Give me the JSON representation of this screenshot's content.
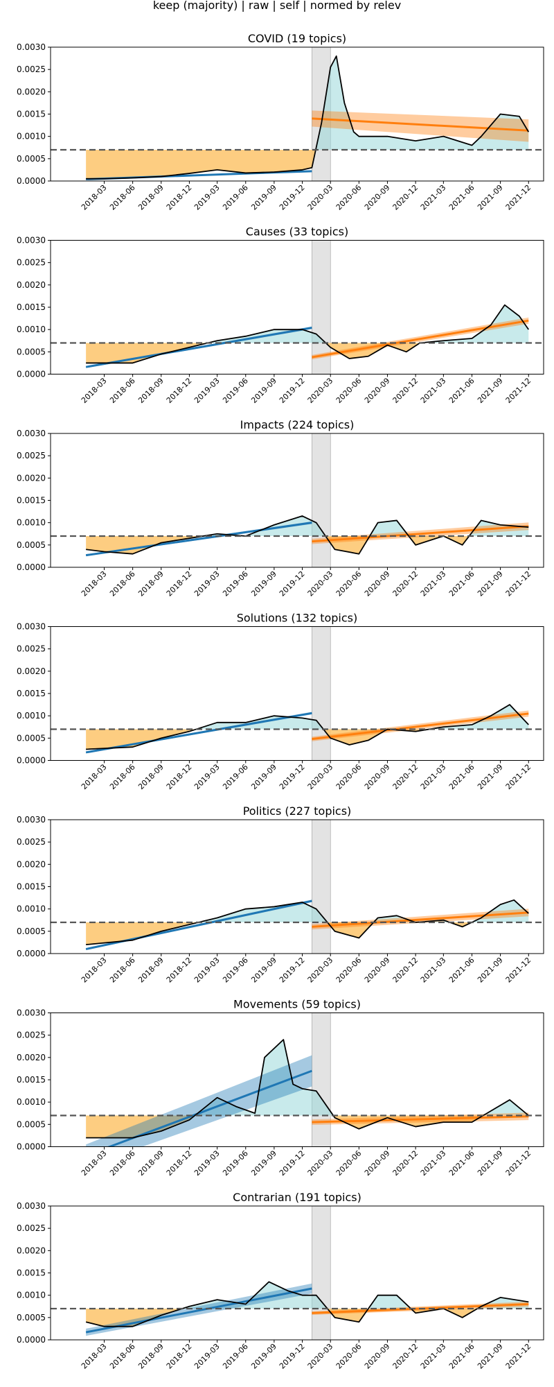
{
  "title": "keep (majority) | raw | self | normed by relev",
  "colors": {
    "below_fill": "#fdc46b",
    "above_fill": "#9ad9da",
    "series_line": "#000000",
    "pre_fit": "#1f77b4",
    "post_fit": "#ff7f0e",
    "threshold_line": "#555555",
    "shade_band": "#d9d9d9"
  },
  "chart_data": [
    {
      "type": "line",
      "title": "COVID (19 topics)",
      "x_range": [
        "2018-01-01",
        "2021-12-01"
      ],
      "ylim": [
        0,
        0.003
      ],
      "yticks": [
        "0.0000",
        "0.0005",
        "0.0010",
        "0.0015",
        "0.0020",
        "0.0025",
        "0.0030"
      ],
      "xticks": [
        "2018-03",
        "2018-06",
        "2018-09",
        "2018-12",
        "2019-03",
        "2019-06",
        "2019-09",
        "2019-12",
        "2020-03",
        "2020-06",
        "2020-09",
        "2020-12",
        "2021-03",
        "2021-06",
        "2021-09",
        "2021-12"
      ],
      "threshold": 0.0007,
      "shade": [
        "2020-01-01",
        "2020-03-01"
      ],
      "series": [
        {
          "x": [
            "2018-01-01",
            "2018-03-01",
            "2018-06-01",
            "2018-09-01",
            "2018-12-01",
            "2019-03-01",
            "2019-06-01",
            "2019-09-01",
            "2019-12-01",
            "2020-01-01",
            "2020-02-01",
            "2020-03-01",
            "2020-03-20",
            "2020-04-15",
            "2020-05-15",
            "2020-06-01",
            "2020-09-01",
            "2020-12-01",
            "2021-03-01",
            "2021-06-01",
            "2021-07-01",
            "2021-09-01",
            "2021-11-01",
            "2021-12-01"
          ],
          "y": [
            5e-05,
            5e-05,
            7e-05,
            0.0001,
            0.00017,
            0.00025,
            0.00018,
            0.0002,
            0.00025,
            0.0003,
            0.0013,
            0.00255,
            0.0028,
            0.00175,
            0.0011,
            0.001,
            0.001,
            0.0009,
            0.001,
            0.0008,
            0.001,
            0.0015,
            0.00145,
            0.0011
          ]
        }
      ],
      "pre_fit": {
        "x": [
          "2018-01-01",
          "2020-01-01"
        ],
        "y": [
          4e-05,
          0.00022
        ],
        "ci": 1e-05
      },
      "post_fit": {
        "x": [
          "2020-01-01",
          "2021-12-01"
        ],
        "y": [
          0.0014,
          0.00113
        ],
        "ci": 0.00018
      }
    },
    {
      "type": "line",
      "title": "Causes (33 topics)",
      "x_range": [
        "2018-01-01",
        "2021-12-01"
      ],
      "ylim": [
        0,
        0.003
      ],
      "yticks": [
        "0.0000",
        "0.0005",
        "0.0010",
        "0.0015",
        "0.0020",
        "0.0025",
        "0.0030"
      ],
      "xticks": [
        "2018-03",
        "2018-06",
        "2018-09",
        "2018-12",
        "2019-03",
        "2019-06",
        "2019-09",
        "2019-12",
        "2020-03",
        "2020-06",
        "2020-09",
        "2020-12",
        "2021-03",
        "2021-06",
        "2021-09",
        "2021-12"
      ],
      "threshold": 0.0007,
      "shade": [
        "2020-01-01",
        "2020-03-01"
      ],
      "series": [
        {
          "x": [
            "2018-01-01",
            "2018-06-01",
            "2018-09-01",
            "2018-12-01",
            "2019-03-01",
            "2019-06-01",
            "2019-09-01",
            "2019-12-01",
            "2020-01-15",
            "2020-03-01",
            "2020-05-01",
            "2020-07-01",
            "2020-09-01",
            "2020-11-01",
            "2020-12-15",
            "2021-03-01",
            "2021-06-01",
            "2021-08-01",
            "2021-09-15",
            "2021-11-01",
            "2021-12-01"
          ],
          "y": [
            0.00025,
            0.00025,
            0.00045,
            0.0006,
            0.00075,
            0.00085,
            0.001,
            0.001,
            0.0009,
            0.0006,
            0.00035,
            0.0004,
            0.00065,
            0.0005,
            0.0007,
            0.00075,
            0.0008,
            0.0011,
            0.00155,
            0.0013,
            0.001
          ]
        }
      ],
      "pre_fit": {
        "x": [
          "2018-01-01",
          "2020-01-01"
        ],
        "y": [
          0.00016,
          0.00104
        ],
        "ci": 2e-05
      },
      "post_fit": {
        "x": [
          "2020-01-01",
          "2021-12-01"
        ],
        "y": [
          0.00038,
          0.0012
        ],
        "ci": 5e-05
      }
    },
    {
      "type": "line",
      "title": "Impacts (224 topics)",
      "x_range": [
        "2018-01-01",
        "2021-12-01"
      ],
      "ylim": [
        0,
        0.003
      ],
      "yticks": [
        "0.0000",
        "0.0005",
        "0.0010",
        "0.0015",
        "0.0020",
        "0.0025",
        "0.0030"
      ],
      "xticks": [
        "2018-03",
        "2018-06",
        "2018-09",
        "2018-12",
        "2019-03",
        "2019-06",
        "2019-09",
        "2019-12",
        "2020-03",
        "2020-06",
        "2020-09",
        "2020-12",
        "2021-03",
        "2021-06",
        "2021-09",
        "2021-12"
      ],
      "threshold": 0.0007,
      "shade": [
        "2020-01-01",
        "2020-03-01"
      ],
      "series": [
        {
          "x": [
            "2018-01-01",
            "2018-03-01",
            "2018-06-01",
            "2018-09-01",
            "2018-12-01",
            "2019-03-01",
            "2019-06-01",
            "2019-09-01",
            "2019-12-01",
            "2020-01-15",
            "2020-03-15",
            "2020-06-01",
            "2020-08-01",
            "2020-10-01",
            "2020-12-01",
            "2021-03-01",
            "2021-05-01",
            "2021-07-01",
            "2021-09-01",
            "2021-12-01"
          ],
          "y": [
            0.0004,
            0.00035,
            0.0003,
            0.00055,
            0.00065,
            0.00075,
            0.0007,
            0.00095,
            0.00115,
            0.001,
            0.0004,
            0.0003,
            0.001,
            0.00105,
            0.0005,
            0.0007,
            0.0005,
            0.00105,
            0.00095,
            0.0009
          ]
        }
      ],
      "pre_fit": {
        "x": [
          "2018-01-01",
          "2020-01-01"
        ],
        "y": [
          0.00027,
          0.001
        ],
        "ci": 2e-05
      },
      "post_fit": {
        "x": [
          "2020-01-01",
          "2021-12-01"
        ],
        "y": [
          0.00058,
          0.00092
        ],
        "ci": 6e-05
      }
    },
    {
      "type": "line",
      "title": "Solutions (132 topics)",
      "x_range": [
        "2018-01-01",
        "2021-12-01"
      ],
      "ylim": [
        0,
        0.003
      ],
      "yticks": [
        "0.0000",
        "0.0005",
        "0.0010",
        "0.0015",
        "0.0020",
        "0.0025",
        "0.0030"
      ],
      "xticks": [
        "2018-03",
        "2018-06",
        "2018-09",
        "2018-12",
        "2019-03",
        "2019-06",
        "2019-09",
        "2019-12",
        "2020-03",
        "2020-06",
        "2020-09",
        "2020-12",
        "2021-03",
        "2021-06",
        "2021-09",
        "2021-12"
      ],
      "threshold": 0.0007,
      "shade": [
        "2020-01-01",
        "2020-03-01"
      ],
      "series": [
        {
          "x": [
            "2018-01-01",
            "2018-06-01",
            "2018-09-01",
            "2018-12-01",
            "2019-03-01",
            "2019-06-01",
            "2019-09-01",
            "2019-12-01",
            "2020-01-15",
            "2020-03-01",
            "2020-05-01",
            "2020-07-01",
            "2020-09-01",
            "2020-12-01",
            "2021-03-01",
            "2021-06-01",
            "2021-08-01",
            "2021-10-01",
            "2021-12-01"
          ],
          "y": [
            0.00025,
            0.0003,
            0.0005,
            0.00065,
            0.00085,
            0.00085,
            0.001,
            0.00095,
            0.0009,
            0.0005,
            0.00035,
            0.00045,
            0.0007,
            0.00065,
            0.00075,
            0.0008,
            0.001,
            0.00125,
            0.0008
          ]
        }
      ],
      "pre_fit": {
        "x": [
          "2018-01-01",
          "2020-01-01"
        ],
        "y": [
          0.00018,
          0.00106
        ],
        "ci": 2e-05
      },
      "post_fit": {
        "x": [
          "2020-01-01",
          "2021-12-01"
        ],
        "y": [
          0.00048,
          0.00105
        ],
        "ci": 5e-05
      }
    },
    {
      "type": "line",
      "title": "Politics (227 topics)",
      "x_range": [
        "2018-01-01",
        "2021-12-01"
      ],
      "ylim": [
        0,
        0.003
      ],
      "yticks": [
        "0.0000",
        "0.0005",
        "0.0010",
        "0.0015",
        "0.0020",
        "0.0025",
        "0.0030"
      ],
      "xticks": [
        "2018-03",
        "2018-06",
        "2018-09",
        "2018-12",
        "2019-03",
        "2019-06",
        "2019-09",
        "2019-12",
        "2020-03",
        "2020-06",
        "2020-09",
        "2020-12",
        "2021-03",
        "2021-06",
        "2021-09",
        "2021-12"
      ],
      "threshold": 0.0007,
      "shade": [
        "2020-01-01",
        "2020-03-01"
      ],
      "series": [
        {
          "x": [
            "2018-01-01",
            "2018-06-01",
            "2018-09-01",
            "2018-12-01",
            "2019-03-01",
            "2019-06-01",
            "2019-09-01",
            "2019-12-01",
            "2020-01-15",
            "2020-03-15",
            "2020-06-01",
            "2020-08-01",
            "2020-10-01",
            "2020-12-01",
            "2021-03-01",
            "2021-05-01",
            "2021-07-01",
            "2021-09-01",
            "2021-10-15",
            "2021-12-01"
          ],
          "y": [
            0.0002,
            0.0003,
            0.0005,
            0.00065,
            0.0008,
            0.001,
            0.00105,
            0.00115,
            0.001,
            0.0005,
            0.00035,
            0.0008,
            0.00085,
            0.0007,
            0.00075,
            0.0006,
            0.0008,
            0.0011,
            0.0012,
            0.0009
          ]
        }
      ],
      "pre_fit": {
        "x": [
          "2018-01-01",
          "2020-01-01"
        ],
        "y": [
          0.0001,
          0.00118
        ],
        "ci": 2e-05
      },
      "post_fit": {
        "x": [
          "2020-01-01",
          "2021-12-01"
        ],
        "y": [
          0.0006,
          0.00092
        ],
        "ci": 6e-05
      }
    },
    {
      "type": "line",
      "title": "Movements (59 topics)",
      "x_range": [
        "2018-01-01",
        "2021-12-01"
      ],
      "ylim": [
        0,
        0.003
      ],
      "yticks": [
        "0.0000",
        "0.0005",
        "0.0010",
        "0.0015",
        "0.0020",
        "0.0025",
        "0.0030"
      ],
      "xticks": [
        "2018-03",
        "2018-06",
        "2018-09",
        "2018-12",
        "2019-03",
        "2019-06",
        "2019-09",
        "2019-12",
        "2020-03",
        "2020-06",
        "2020-09",
        "2020-12",
        "2021-03",
        "2021-06",
        "2021-09",
        "2021-12"
      ],
      "threshold": 0.0007,
      "shade": [
        "2020-01-01",
        "2020-03-01"
      ],
      "series": [
        {
          "x": [
            "2018-01-01",
            "2018-06-01",
            "2018-09-01",
            "2018-12-01",
            "2019-03-01",
            "2019-05-01",
            "2019-07-01",
            "2019-08-01",
            "2019-10-01",
            "2019-11-01",
            "2019-12-01",
            "2020-01-15",
            "2020-03-15",
            "2020-06-01",
            "2020-09-01",
            "2020-12-01",
            "2021-03-01",
            "2021-06-01",
            "2021-08-01",
            "2021-10-01",
            "2021-12-01"
          ],
          "y": [
            0.0002,
            0.0002,
            0.00035,
            0.0006,
            0.0011,
            0.0009,
            0.00075,
            0.002,
            0.0024,
            0.0014,
            0.0013,
            0.00125,
            0.00065,
            0.0004,
            0.00065,
            0.00045,
            0.00055,
            0.00055,
            0.0008,
            0.00105,
            0.0007
          ]
        }
      ],
      "pre_fit": {
        "x": [
          "2018-01-01",
          "2020-01-01"
        ],
        "y": [
          -0.0002,
          0.0017
        ],
        "ci": 0.00025
      },
      "post_fit": {
        "x": [
          "2020-01-01",
          "2021-12-01"
        ],
        "y": [
          0.00055,
          0.00068
        ],
        "ci": 6e-05
      }
    },
    {
      "type": "line",
      "title": "Contrarian (191 topics)",
      "x_range": [
        "2018-01-01",
        "2021-12-01"
      ],
      "ylim": [
        0,
        0.003
      ],
      "yticks": [
        "0.0000",
        "0.0005",
        "0.0010",
        "0.0015",
        "0.0020",
        "0.0025",
        "0.0030"
      ],
      "xticks": [
        "2018-03",
        "2018-06",
        "2018-09",
        "2018-12",
        "2019-03",
        "2019-06",
        "2019-09",
        "2019-12",
        "2020-03",
        "2020-06",
        "2020-09",
        "2020-12",
        "2021-03",
        "2021-06",
        "2021-09",
        "2021-12"
      ],
      "threshold": 0.0007,
      "shade": [
        "2020-01-01",
        "2020-03-01"
      ],
      "series": [
        {
          "x": [
            "2018-01-01",
            "2018-03-01",
            "2018-06-01",
            "2018-09-01",
            "2018-12-01",
            "2019-03-01",
            "2019-06-01",
            "2019-08-15",
            "2019-10-15",
            "2019-12-01",
            "2020-01-15",
            "2020-03-15",
            "2020-06-01",
            "2020-08-01",
            "2020-10-01",
            "2020-12-01",
            "2021-03-01",
            "2021-05-01",
            "2021-07-01",
            "2021-09-01",
            "2021-12-01"
          ],
          "y": [
            0.0004,
            0.0003,
            0.0003,
            0.00055,
            0.00075,
            0.0009,
            0.0008,
            0.0013,
            0.0011,
            0.001,
            0.001,
            0.0005,
            0.0004,
            0.001,
            0.001,
            0.0006,
            0.0007,
            0.0005,
            0.00075,
            0.00095,
            0.00085
          ]
        }
      ],
      "pre_fit": {
        "x": [
          "2018-01-01",
          "2020-01-01"
        ],
        "y": [
          0.00017,
          0.00115
        ],
        "ci": 8e-05
      },
      "post_fit": {
        "x": [
          "2020-01-01",
          "2021-12-01"
        ],
        "y": [
          0.0006,
          0.0008
        ],
        "ci": 4e-05
      }
    }
  ]
}
